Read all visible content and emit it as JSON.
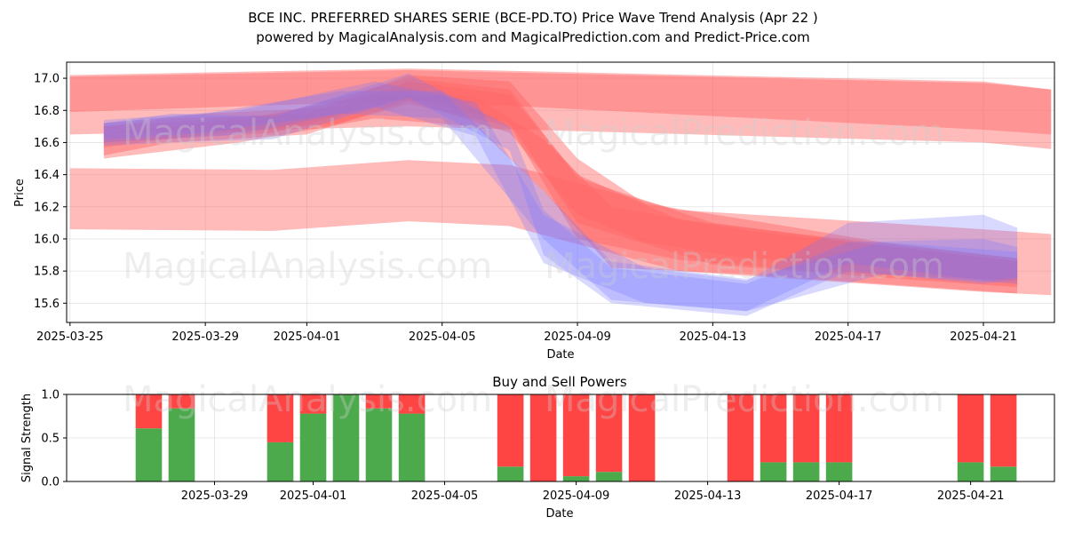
{
  "title_line1": "BCE INC. PREFERRED SHARES SERIE (BCE-PD.TO) Price Wave Trend Analysis (Apr 22 )",
  "title_line2": "powered by MagicalAnalysis.com and MagicalPrediction.com and Predict-Price.com",
  "watermarks": [
    "MagicalAnalysis.com",
    "MagicalPrediction.com"
  ],
  "colors": {
    "buy": "#4caa4c",
    "sell": "#ff4444",
    "red_band": "#ff6666",
    "blue_band": "#7777ff"
  },
  "chart_data": [
    {
      "type": "area",
      "xlabel": "Date",
      "ylabel": "Price",
      "xlim": [
        "2025-03-25",
        "2025-04-23"
      ],
      "ylim": [
        15.48,
        17.1
      ],
      "x_ticks": [
        "2025-03-25",
        "2025-03-29",
        "2025-04-01",
        "2025-04-05",
        "2025-04-09",
        "2025-04-13",
        "2025-04-17",
        "2025-04-21"
      ],
      "y_ticks": [
        "15.6",
        "15.8",
        "16.0",
        "16.2",
        "16.4",
        "16.6",
        "16.8",
        "17.0"
      ],
      "grid": true,
      "series": [
        {
          "color": "red",
          "x": [
            "2025-03-25",
            "2025-04-04",
            "2025-04-21",
            "2025-04-23"
          ],
          "low": [
            16.65,
            16.7,
            16.6,
            16.56
          ],
          "high": [
            17.02,
            17.06,
            16.98,
            16.93
          ]
        },
        {
          "color": "red",
          "x": [
            "2025-03-25",
            "2025-04-04",
            "2025-04-21",
            "2025-04-23"
          ],
          "low": [
            16.79,
            16.86,
            16.68,
            16.65
          ],
          "high": [
            17.01,
            17.05,
            16.97,
            16.93
          ]
        },
        {
          "color": "red",
          "x": [
            "2025-03-25",
            "2025-03-31",
            "2025-04-04",
            "2025-04-07",
            "2025-04-12",
            "2025-04-21",
            "2025-04-23"
          ],
          "low": [
            16.06,
            16.05,
            16.11,
            16.08,
            15.8,
            15.67,
            15.65
          ],
          "high": [
            16.44,
            16.43,
            16.49,
            16.46,
            16.18,
            16.06,
            16.03
          ]
        },
        {
          "color": "red",
          "x": [
            "2025-03-26",
            "2025-03-28",
            "2025-04-01",
            "2025-04-04",
            "2025-04-07",
            "2025-04-09",
            "2025-04-11",
            "2025-04-14",
            "2025-04-18",
            "2025-04-22"
          ],
          "low": [
            16.52,
            16.6,
            16.65,
            16.86,
            16.66,
            16.15,
            15.98,
            15.88,
            15.82,
            15.72
          ],
          "high": [
            16.7,
            16.75,
            16.78,
            17.02,
            16.98,
            16.5,
            16.22,
            16.12,
            15.98,
            15.88
          ]
        },
        {
          "color": "red",
          "x": [
            "2025-03-26",
            "2025-03-29",
            "2025-04-02",
            "2025-04-04",
            "2025-04-07",
            "2025-04-09",
            "2025-04-12",
            "2025-04-16",
            "2025-04-22"
          ],
          "low": [
            16.57,
            16.65,
            16.72,
            16.84,
            16.7,
            16.0,
            15.87,
            15.8,
            15.74
          ],
          "high": [
            16.72,
            16.78,
            16.82,
            16.98,
            16.9,
            16.4,
            16.12,
            16.02,
            15.88
          ]
        },
        {
          "color": "red",
          "x": [
            "2025-03-26",
            "2025-03-30",
            "2025-04-03",
            "2025-04-06",
            "2025-04-08",
            "2025-04-10",
            "2025-04-14",
            "2025-04-18",
            "2025-04-22"
          ],
          "low": [
            16.5,
            16.6,
            16.75,
            16.7,
            16.3,
            15.82,
            15.78,
            15.72,
            15.66
          ],
          "high": [
            16.66,
            16.74,
            16.9,
            16.88,
            16.62,
            16.2,
            16.05,
            15.96,
            15.86
          ]
        },
        {
          "color": "red",
          "x": [
            "2025-03-26",
            "2025-03-31",
            "2025-04-04",
            "2025-04-07",
            "2025-04-09",
            "2025-04-13",
            "2025-04-18",
            "2025-04-22"
          ],
          "low": [
            16.6,
            16.66,
            16.88,
            16.72,
            16.1,
            15.84,
            15.76,
            15.7
          ],
          "high": [
            16.7,
            16.77,
            17.0,
            16.93,
            16.38,
            16.1,
            15.96,
            15.86
          ]
        },
        {
          "color": "blue",
          "x": [
            "2025-03-26",
            "2025-03-28",
            "2025-03-31",
            "2025-04-04",
            "2025-04-07",
            "2025-04-08",
            "2025-04-10",
            "2025-04-14",
            "2025-04-17",
            "2025-04-21",
            "2025-04-22"
          ],
          "low": [
            16.58,
            16.6,
            16.62,
            16.88,
            16.55,
            15.9,
            15.6,
            15.52,
            15.8,
            15.72,
            15.75
          ],
          "high": [
            16.72,
            16.78,
            16.76,
            17.03,
            16.7,
            16.18,
            15.82,
            15.72,
            15.98,
            16.0,
            15.95
          ]
        },
        {
          "color": "blue",
          "x": [
            "2025-03-26",
            "2025-03-30",
            "2025-04-03",
            "2025-04-06",
            "2025-04-08",
            "2025-04-11",
            "2025-04-14",
            "2025-04-17",
            "2025-04-21",
            "2025-04-22"
          ],
          "low": [
            16.6,
            16.65,
            16.82,
            16.64,
            15.85,
            15.6,
            15.55,
            15.85,
            15.74,
            15.76
          ],
          "high": [
            16.74,
            16.8,
            16.98,
            16.85,
            16.15,
            15.82,
            15.74,
            16.1,
            16.15,
            16.07
          ]
        },
        {
          "color": "blue",
          "x": [
            "2025-03-26",
            "2025-03-29",
            "2025-04-02",
            "2025-04-05",
            "2025-04-08",
            "2025-04-10",
            "2025-04-14",
            "2025-04-18",
            "2025-04-22"
          ],
          "low": [
            16.62,
            16.66,
            16.78,
            16.75,
            16.0,
            15.62,
            15.55,
            15.78,
            15.72
          ],
          "high": [
            16.72,
            16.78,
            16.92,
            16.92,
            16.3,
            15.86,
            15.75,
            15.98,
            15.92
          ]
        }
      ]
    },
    {
      "type": "bar",
      "title": "Buy and Sell Powers",
      "xlabel": "Date",
      "ylabel": "Signal Strength",
      "ylim": [
        0,
        1
      ],
      "x_ticks": [
        "2025-03-29",
        "2025-04-01",
        "2025-04-05",
        "2025-04-09",
        "2025-04-13",
        "2025-04-17",
        "2025-04-21"
      ],
      "y_ticks": [
        "0.0",
        "0.5",
        "1.0"
      ],
      "dates": [
        "2025-03-27",
        "2025-03-28",
        "2025-03-31",
        "2025-04-01",
        "2025-04-02",
        "2025-04-03",
        "2025-04-04",
        "2025-04-07",
        "2025-04-08",
        "2025-04-09",
        "2025-04-10",
        "2025-04-11",
        "2025-04-14",
        "2025-04-15",
        "2025-04-16",
        "2025-04-17",
        "2025-04-21",
        "2025-04-22"
      ],
      "buy": [
        0.61,
        0.84,
        0.45,
        0.78,
        1.0,
        0.84,
        0.78,
        0.17,
        0.0,
        0.06,
        0.11,
        0.0,
        0.0,
        0.22,
        0.22,
        0.22,
        0.22,
        0.17
      ],
      "sell": [
        0.39,
        0.16,
        0.55,
        0.22,
        0.0,
        0.16,
        0.22,
        0.83,
        1.0,
        0.94,
        0.89,
        1.0,
        1.0,
        0.78,
        0.78,
        0.78,
        0.78,
        0.83
      ]
    }
  ]
}
